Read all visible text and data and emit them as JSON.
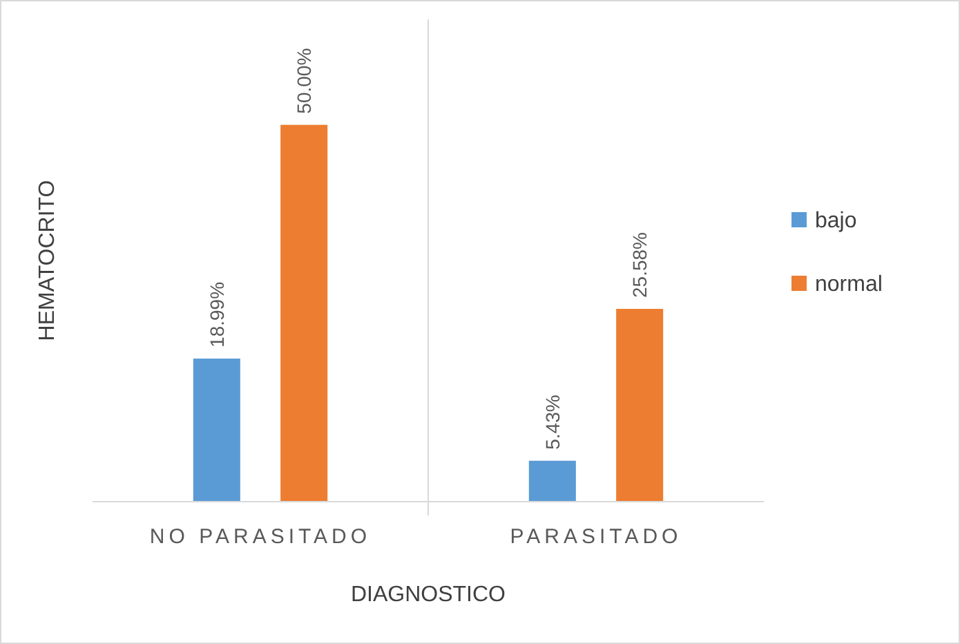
{
  "chart_data": {
    "type": "bar",
    "xlabel": "DIAGNOSTICO",
    "ylabel": "HEMATOCRITO",
    "categories": [
      "NO PARASITADO",
      "PARASITADO"
    ],
    "series": [
      {
        "name": "bajo",
        "color": "#5b9bd5",
        "values": [
          18.99,
          5.43
        ],
        "value_labels": [
          "18.99%",
          "5.43%"
        ]
      },
      {
        "name": "normal",
        "color": "#ed7d31",
        "values": [
          50.0,
          25.58
        ],
        "value_labels": [
          "50.00%",
          "25.58%"
        ]
      }
    ],
    "legend": "right",
    "grid": false
  }
}
